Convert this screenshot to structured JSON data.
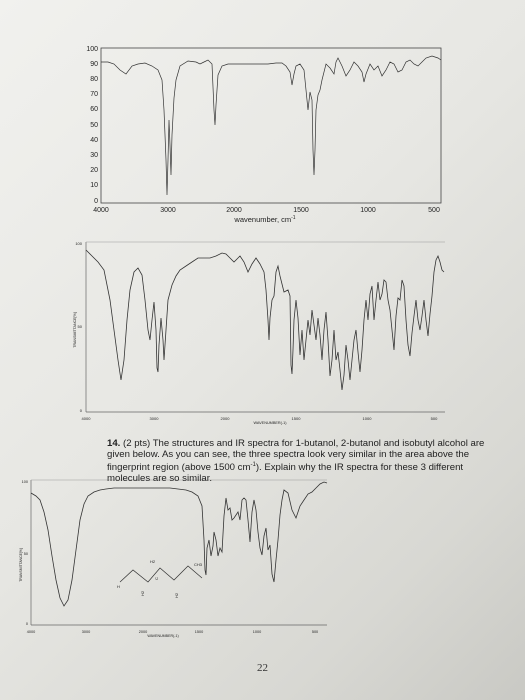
{
  "spectrum1": {
    "y_ticks": [
      "100",
      "90",
      "80",
      "70",
      "60",
      "50",
      "40",
      "30",
      "20",
      "10",
      "0"
    ],
    "x_ticks": [
      "4000",
      "3000",
      "2000",
      "1500",
      "1000",
      "500"
    ],
    "xlabel": "wavenumber, cm",
    "xlabel_sup": "-1"
  },
  "spectrum2": {
    "top_left": "100",
    "mid_left": "50",
    "bottom_left": "0",
    "ylabel": "TRANSMITTANCE[%]",
    "x_ticks": [
      "4000",
      "3000",
      "2000",
      "1500",
      "1000",
      "500"
    ],
    "xlabel": "WAVENUMBER(-1)"
  },
  "question": {
    "number": "14.",
    "text": " (2 pts) The structures and IR spectra for 1-butanol, 2-butanol and isobutyl alcohol are given below. As you can see, the three spectra look very similar in the area above the fingerprint region (above 1500 cm",
    "sup": "-1",
    "text_end": ").  Explain why the IR spectra for these 3 different molecules are so similar."
  },
  "spectrum3": {
    "top_left": "100",
    "mid_left": "50",
    "bottom_left": "0",
    "ylabel": "TRANSMITTANCE[%]",
    "x_ticks": [
      "4000",
      "3000",
      "2000",
      "1500",
      "1000",
      "500"
    ],
    "xlabel": "WAVENUMBER(-1)",
    "molecule_labels": [
      "H2",
      "CH3",
      "H",
      "C",
      "H2",
      "H2"
    ]
  },
  "page_number": "22"
}
